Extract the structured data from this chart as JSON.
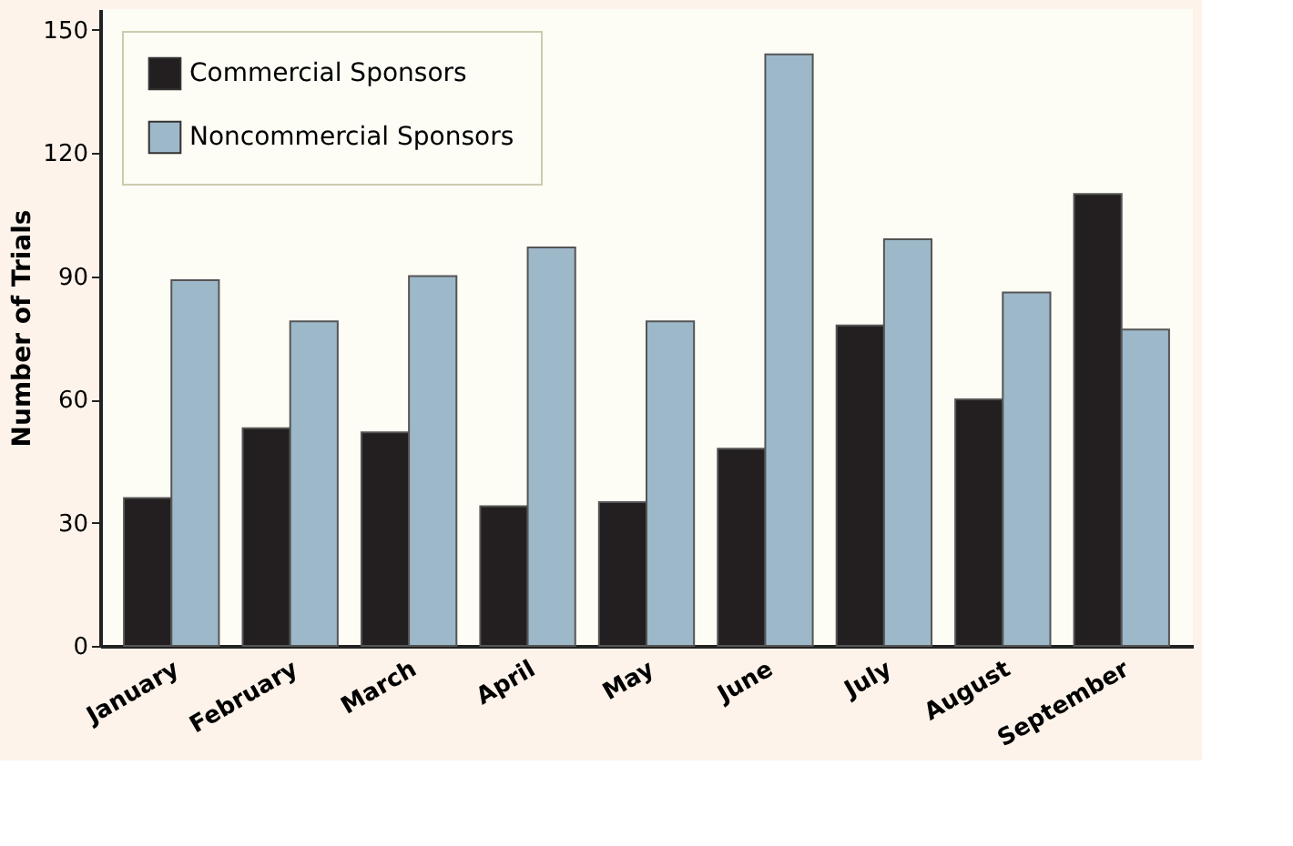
{
  "chart_data": {
    "type": "bar",
    "ylabel": "Number of Trials",
    "categories": [
      "January",
      "February",
      "March",
      "April",
      "May",
      "June",
      "July",
      "August",
      "September"
    ],
    "series": [
      {
        "name": "Commercial Sponsors",
        "color": "#231f20",
        "values": [
          36,
          53,
          52,
          34,
          35,
          48,
          78,
          60,
          110
        ]
      },
      {
        "name": "Noncommercial Sponsors",
        "color": "#9db8c9",
        "values": [
          89,
          79,
          90,
          97,
          79,
          144,
          99,
          86,
          77
        ]
      }
    ],
    "ylim": [
      0,
      155
    ],
    "yticks": [
      0,
      30,
      60,
      90,
      120,
      150
    ],
    "grid": false,
    "legend": "top left"
  }
}
